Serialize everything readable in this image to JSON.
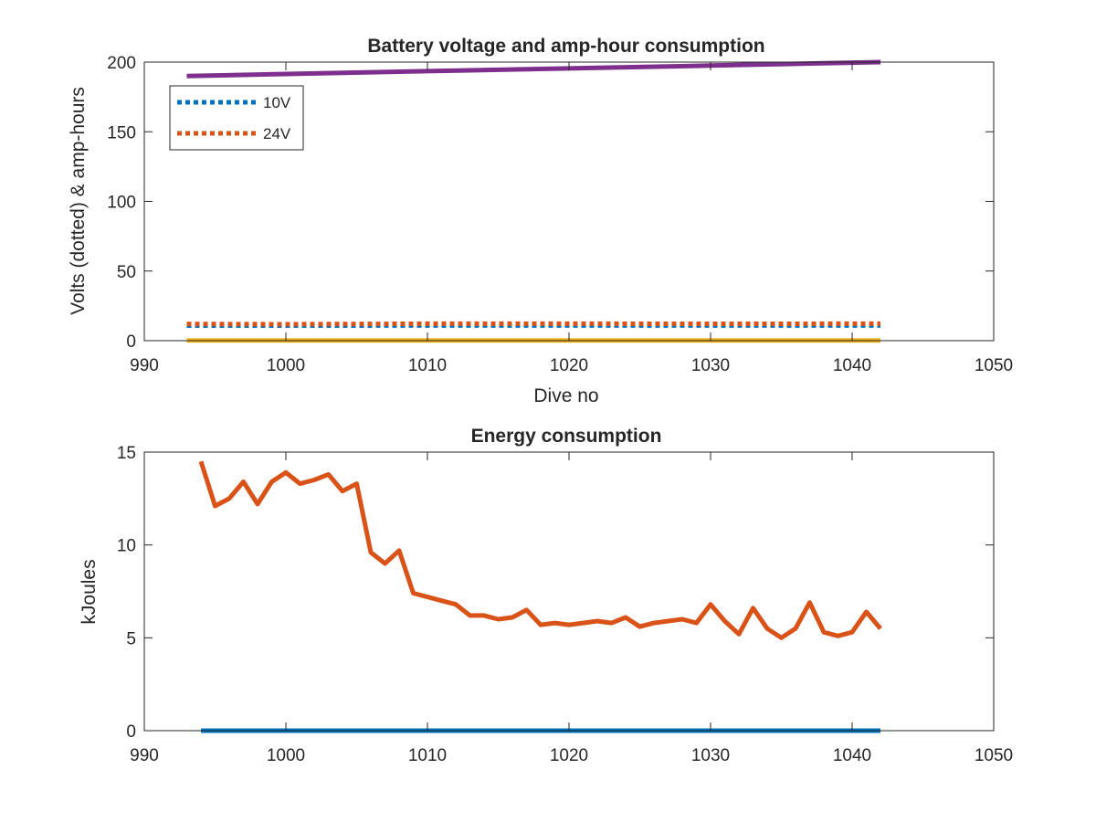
{
  "chart_data": [
    {
      "type": "line",
      "title": "Battery voltage and amp-hour consumption",
      "xlabel": "Dive no",
      "ylabel": "Volts (dotted) & amp-hours",
      "xlim": [
        990,
        1050
      ],
      "ylim": [
        0,
        200
      ],
      "xticks": [
        "990",
        "1000",
        "1010",
        "1020",
        "1030",
        "1040",
        "1050"
      ],
      "yticks": [
        "0",
        "50",
        "100",
        "150",
        "200"
      ],
      "legend_position": "top-left",
      "legend": [
        "10V",
        "24V"
      ],
      "series": [
        {
          "name": "10V",
          "style": "dotted",
          "color": "#0072BD",
          "x": [
            993,
            1000,
            1010,
            1020,
            1030,
            1042
          ],
          "y": [
            10.8,
            10.8,
            10.9,
            10.9,
            10.9,
            10.9
          ]
        },
        {
          "name": "24V",
          "style": "dotted",
          "color": "#D95319",
          "x": [
            993,
            1000,
            1010,
            1020,
            1030,
            1042
          ],
          "y": [
            12,
            11.8,
            12.2,
            12.2,
            12.1,
            12.2
          ]
        },
        {
          "style": "solid",
          "color": "#EDB120",
          "x": [
            993,
            1042
          ],
          "y": [
            0.2,
            0.2
          ]
        },
        {
          "style": "solid",
          "color": "#7E2F8E",
          "x": [
            993,
            1000,
            1010,
            1020,
            1030,
            1042
          ],
          "y": [
            190,
            191.5,
            193.5,
            195.5,
            197.5,
            200
          ]
        }
      ]
    },
    {
      "type": "line",
      "title": "Energy consumption",
      "xlabel": "",
      "ylabel": "kJoules",
      "xlim": [
        990,
        1050
      ],
      "ylim": [
        0,
        15
      ],
      "xticks": [
        "990",
        "1000",
        "1010",
        "1020",
        "1030",
        "1040",
        "1050"
      ],
      "yticks": [
        "0",
        "5",
        "10",
        "15"
      ],
      "series": [
        {
          "style": "solid",
          "color": "#D95319",
          "x": [
            994,
            995,
            996,
            997,
            998,
            999,
            1000,
            1001,
            1002,
            1003,
            1004,
            1005,
            1006,
            1007,
            1008,
            1009,
            1010,
            1011,
            1012,
            1013,
            1014,
            1015,
            1016,
            1017,
            1018,
            1019,
            1020,
            1021,
            1022,
            1023,
            1024,
            1025,
            1026,
            1027,
            1028,
            1029,
            1030,
            1031,
            1032,
            1033,
            1034,
            1035,
            1036,
            1037,
            1038,
            1039,
            1040,
            1041,
            1042
          ],
          "y": [
            14.5,
            12.1,
            12.5,
            13.4,
            12.2,
            13.4,
            13.9,
            13.3,
            13.5,
            13.8,
            12.9,
            13.3,
            9.6,
            9.0,
            9.7,
            7.4,
            7.2,
            7.0,
            6.8,
            6.2,
            6.2,
            6.0,
            6.1,
            6.5,
            5.7,
            5.8,
            5.7,
            5.8,
            5.9,
            5.8,
            6.1,
            5.6,
            5.8,
            5.9,
            6.0,
            5.8,
            6.8,
            5.9,
            5.2,
            6.6,
            5.5,
            5.0,
            5.5,
            6.9,
            5.3,
            5.1,
            5.3,
            6.4,
            5.5
          ]
        },
        {
          "style": "solid",
          "color": "#0072BD",
          "x": [
            994,
            1042
          ],
          "y": [
            0,
            0
          ]
        }
      ]
    }
  ]
}
